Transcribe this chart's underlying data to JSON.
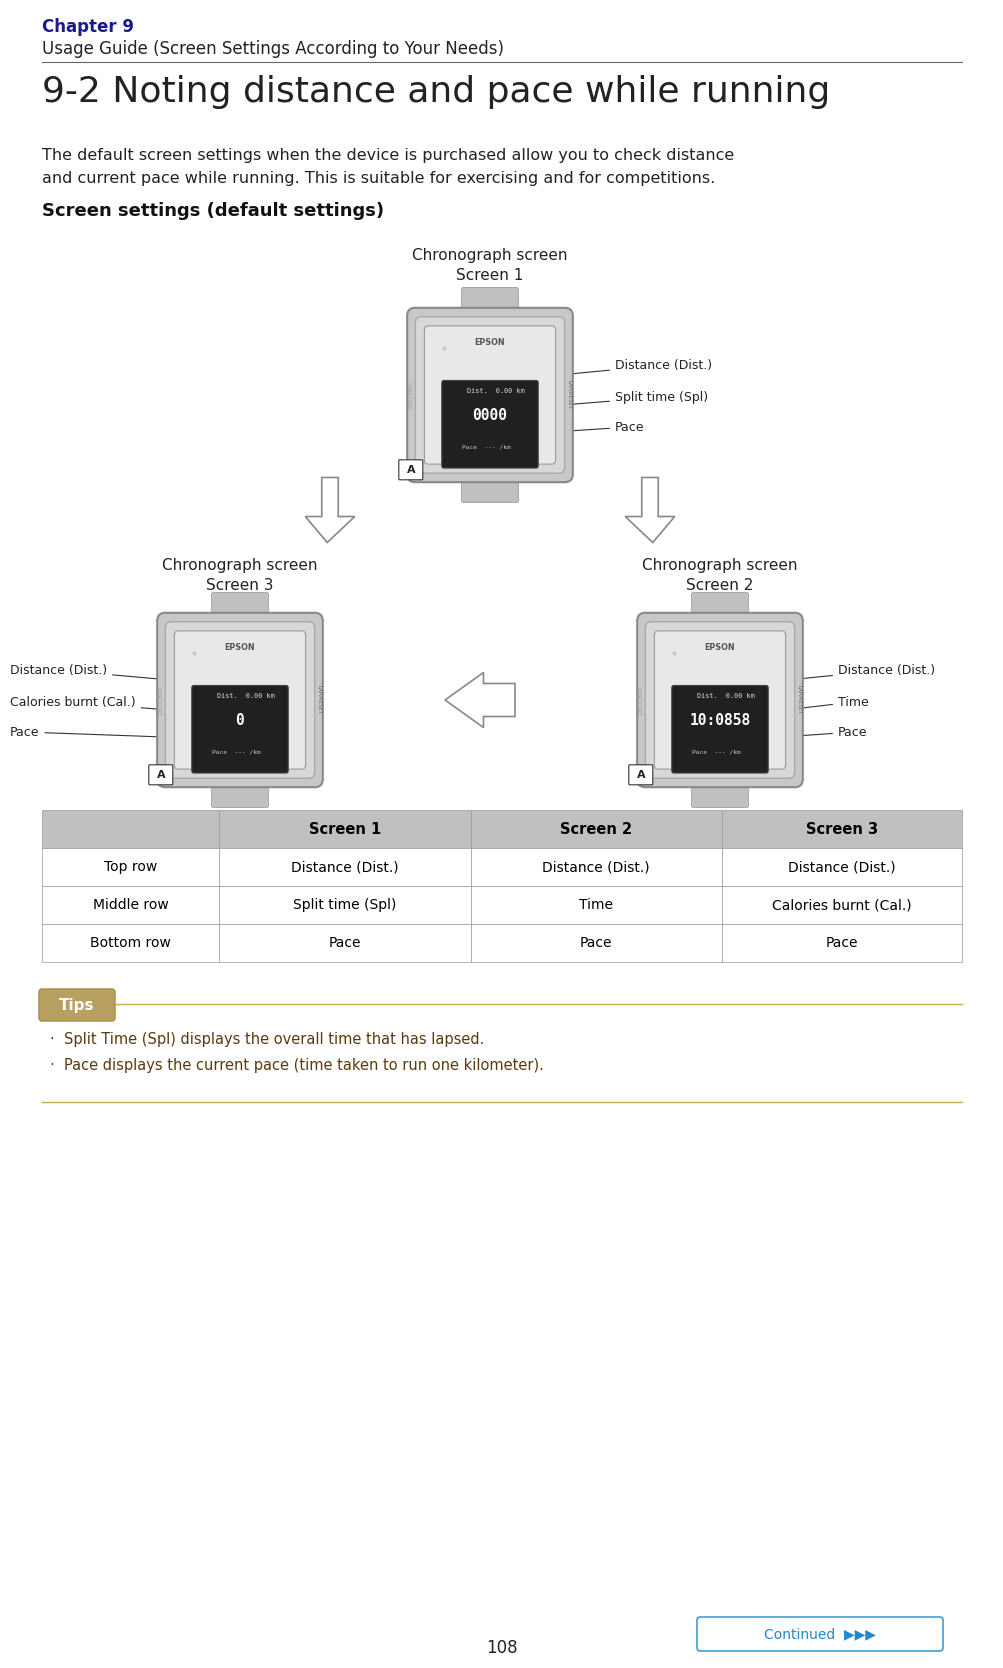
{
  "page_bg": "#ffffff",
  "chapter_label": "Chapter 9",
  "chapter_color": "#1a1a8a",
  "chapter_subtitle": "Usage Guide (Screen Settings According to Your Needs)",
  "section_title": "9-2 Noting distance and pace while running",
  "body_text1": "The default screen settings when the device is purchased allow you to check distance",
  "body_text2": "and current pace while running. This is suitable for exercising and for competitions.",
  "screen_settings_label": "Screen settings (default settings)",
  "table_header_bg": "#c0c0c0",
  "table_header_color": "#000000",
  "table_row_bg": "#ffffff",
  "table_border_color": "#999999",
  "table_headers": [
    "",
    "Screen 1",
    "Screen 2",
    "Screen 3"
  ],
  "table_rows": [
    [
      "Top row",
      "Distance (Dist.)",
      "Distance (Dist.)",
      "Distance (Dist.)"
    ],
    [
      "Middle row",
      "Split time (Spl)",
      "Time",
      "Calories burnt (Cal.)"
    ],
    [
      "Bottom row",
      "Pace",
      "Pace",
      "Pace"
    ]
  ],
  "tips_bg": "#b8a060",
  "tips_label": "Tips",
  "tips_text": [
    "·  Split Time (Spl) displays the overall time that has lapsed.",
    "·  Pace displays the current pace (time taken to run one kilometer)."
  ],
  "tips_text_color": "#5a3a10",
  "tips_line_color": "#c8aa50",
  "continued_text": "Continued",
  "continued_color": "#2288cc",
  "page_number": "108",
  "chronograph_screen1_title": "Chronograph screen\nScreen 1",
  "chronograph_screen3_title": "Chronograph screen\nScreen 3",
  "chronograph_screen2_title": "Chronograph screen\nScreen 2"
}
